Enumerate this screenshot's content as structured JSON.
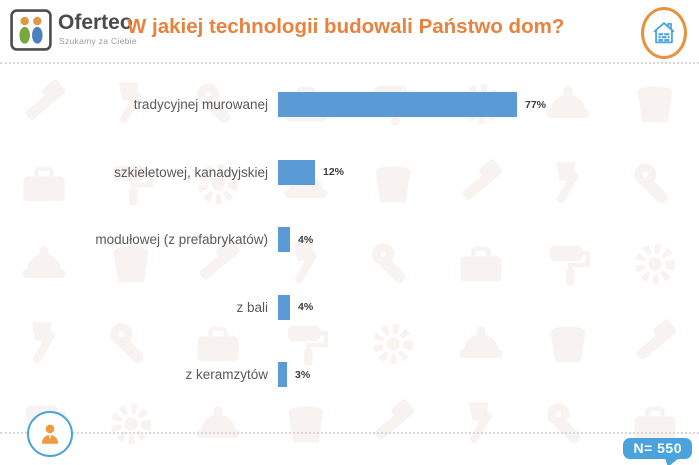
{
  "header": {
    "brand": "Oferteo",
    "tagline": "Szukamy za Ciebie",
    "title": "W jakiej technologii budowali Państwo dom?"
  },
  "chart_data": {
    "type": "bar",
    "orientation": "horizontal",
    "title": "W jakiej technologii budowali Państwo dom?",
    "categories": [
      "tradycyjnej murowanej",
      "szkieletowej, kanadyjskiej",
      "modułowej (z prefabrykatów)",
      "z bali",
      "z keramzytów"
    ],
    "values": [
      77,
      12,
      4,
      4,
      3
    ],
    "value_labels": [
      "77%",
      "12%",
      "4%",
      "4%",
      "3%"
    ],
    "unit": "percent",
    "xlim": [
      0,
      100
    ],
    "grid": "off",
    "legend": "none",
    "bar_color": "#5b9bd5"
  },
  "footer": {
    "sample_size_badge": "N= 550"
  },
  "icons": {
    "logo": "logo-people-icon",
    "header_right": "house-brick-icon",
    "footer_left": "person-icon"
  },
  "colors": {
    "title_orange": "#e8823c",
    "bar_blue": "#5b9bd5",
    "badge_blue": "#4aa3dc",
    "ring_orange": "#e8913e",
    "label_gray": "#595959",
    "watermark_gray": "#f8f3f0"
  },
  "watermark": {
    "description": "faint construction-tool icon pattern",
    "icon_names": [
      "hammer",
      "axe",
      "wrench",
      "toolbox",
      "paint-roller",
      "gear",
      "helmet",
      "bucket"
    ]
  }
}
